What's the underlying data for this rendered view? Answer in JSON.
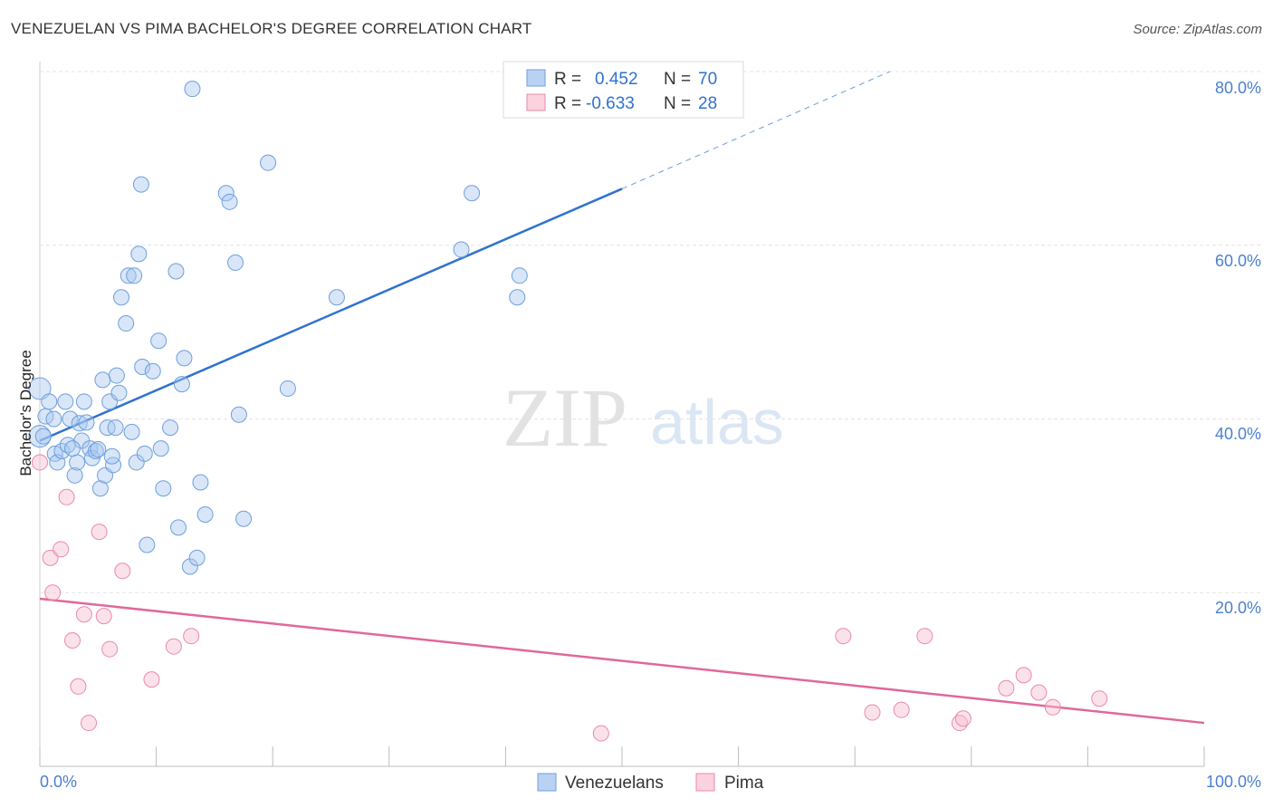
{
  "header": {
    "title": "VENEZUELAN VS PIMA BACHELOR'S DEGREE CORRELATION CHART",
    "source": "Source: ZipAtlas.com"
  },
  "watermark": {
    "zip": "ZIP",
    "atlas": "atlas"
  },
  "colors": {
    "blue_fill": "#a9c8f0",
    "blue_stroke": "#6e9fdc",
    "blue_line": "#2f72d0",
    "pink_fill": "#f7bfd0",
    "pink_stroke": "#e98aa8",
    "pink_line": "#e0689a",
    "tick_text": "#4a7fd0",
    "grid": "#e4e4e4"
  },
  "chart_data": {
    "type": "scatter",
    "title": "VENEZUELAN VS PIMA BACHELOR'S DEGREE CORRELATION CHART",
    "xlabel": "",
    "ylabel": "Bachelor's Degree",
    "xlim": [
      0,
      100
    ],
    "ylim": [
      0,
      80
    ],
    "x_tick_labels": [
      "0.0%",
      "100.0%"
    ],
    "y_ticks": [
      20,
      40,
      60,
      80
    ],
    "y_tick_labels": [
      "20.0%",
      "40.0%",
      "60.0%",
      "80.0%"
    ],
    "grid": true,
    "legend_position": "top-center",
    "stats_legend": [
      {
        "series": "Venezuelans",
        "r_label": "R =",
        "r_value": "0.452",
        "n_label": "N =",
        "n_value": "70"
      },
      {
        "series": "Pima",
        "r_label": "R =",
        "r_value": "-0.633",
        "n_label": "N =",
        "n_value": "28"
      }
    ],
    "series": [
      {
        "name": "Venezuelans",
        "trend": {
          "x0": 0,
          "y0": 37.5,
          "x1": 50,
          "y1": 66.5,
          "dash_x1": 73,
          "dash_y1": 80
        },
        "points": [
          [
            0.0,
            43.5
          ],
          [
            0.0,
            38.0
          ],
          [
            0.5,
            40.3
          ],
          [
            0.8,
            42.0
          ],
          [
            1.2,
            40.0
          ],
          [
            1.3,
            36.0
          ],
          [
            1.5,
            35.0
          ],
          [
            1.9,
            36.3
          ],
          [
            2.2,
            42.0
          ],
          [
            2.4,
            37.0
          ],
          [
            2.6,
            40.0
          ],
          [
            3.0,
            33.5
          ],
          [
            3.2,
            35.0
          ],
          [
            3.4,
            39.5
          ],
          [
            3.6,
            37.5
          ],
          [
            3.8,
            42.0
          ],
          [
            4.0,
            39.6
          ],
          [
            4.3,
            36.6
          ],
          [
            4.5,
            35.5
          ],
          [
            4.8,
            36.3
          ],
          [
            5.0,
            36.5
          ],
          [
            5.2,
            32.0
          ],
          [
            5.4,
            44.5
          ],
          [
            5.6,
            33.5
          ],
          [
            5.8,
            39.0
          ],
          [
            6.0,
            42.0
          ],
          [
            6.3,
            34.7
          ],
          [
            6.5,
            39.0
          ],
          [
            6.6,
            45.0
          ],
          [
            6.8,
            43.0
          ],
          [
            7.0,
            54.0
          ],
          [
            7.4,
            51.0
          ],
          [
            7.6,
            56.5
          ],
          [
            7.9,
            38.5
          ],
          [
            8.1,
            56.5
          ],
          [
            8.3,
            35.0
          ],
          [
            8.5,
            59.0
          ],
          [
            8.7,
            67.0
          ],
          [
            8.8,
            46.0
          ],
          [
            9.0,
            36.0
          ],
          [
            9.2,
            25.5
          ],
          [
            9.7,
            45.5
          ],
          [
            10.2,
            49.0
          ],
          [
            10.4,
            36.6
          ],
          [
            10.6,
            32.0
          ],
          [
            11.2,
            39.0
          ],
          [
            11.7,
            57.0
          ],
          [
            11.9,
            27.5
          ],
          [
            12.2,
            44.0
          ],
          [
            12.4,
            47.0
          ],
          [
            12.9,
            23.0
          ],
          [
            13.1,
            78.0
          ],
          [
            13.5,
            24.0
          ],
          [
            13.8,
            32.7
          ],
          [
            14.2,
            29.0
          ],
          [
            16.0,
            66.0
          ],
          [
            16.3,
            65.0
          ],
          [
            16.8,
            58.0
          ],
          [
            17.1,
            40.5
          ],
          [
            17.5,
            28.5
          ],
          [
            19.6,
            69.5
          ],
          [
            21.3,
            43.5
          ],
          [
            25.5,
            54.0
          ],
          [
            36.2,
            59.5
          ],
          [
            37.1,
            66.0
          ],
          [
            41.0,
            54.0
          ],
          [
            41.2,
            56.5
          ],
          [
            0.3,
            38.0
          ],
          [
            2.8,
            36.6
          ],
          [
            6.2,
            35.7
          ]
        ]
      },
      {
        "name": "Pima",
        "trend": {
          "x0": 0,
          "y0": 19.3,
          "x1": 100,
          "y1": 5.0
        },
        "points": [
          [
            0.0,
            35.0
          ],
          [
            0.9,
            24.0
          ],
          [
            1.1,
            20.0
          ],
          [
            1.8,
            25.0
          ],
          [
            2.3,
            31.0
          ],
          [
            2.8,
            14.5
          ],
          [
            3.3,
            9.2
          ],
          [
            3.8,
            17.5
          ],
          [
            4.2,
            5.0
          ],
          [
            5.1,
            27.0
          ],
          [
            5.5,
            17.3
          ],
          [
            6.0,
            13.5
          ],
          [
            7.1,
            22.5
          ],
          [
            9.6,
            10.0
          ],
          [
            11.5,
            13.8
          ],
          [
            13.0,
            15.0
          ],
          [
            48.2,
            3.8
          ],
          [
            69.0,
            15.0
          ],
          [
            71.5,
            6.2
          ],
          [
            74.0,
            6.5
          ],
          [
            76.0,
            15.0
          ],
          [
            79.0,
            5.0
          ],
          [
            79.3,
            5.5
          ],
          [
            83.0,
            9.0
          ],
          [
            84.5,
            10.5
          ],
          [
            85.8,
            8.5
          ],
          [
            87.0,
            6.8
          ],
          [
            91.0,
            7.8
          ]
        ]
      }
    ]
  },
  "bottom_legend": [
    {
      "label": "Venezuelans"
    },
    {
      "label": "Pima"
    }
  ]
}
